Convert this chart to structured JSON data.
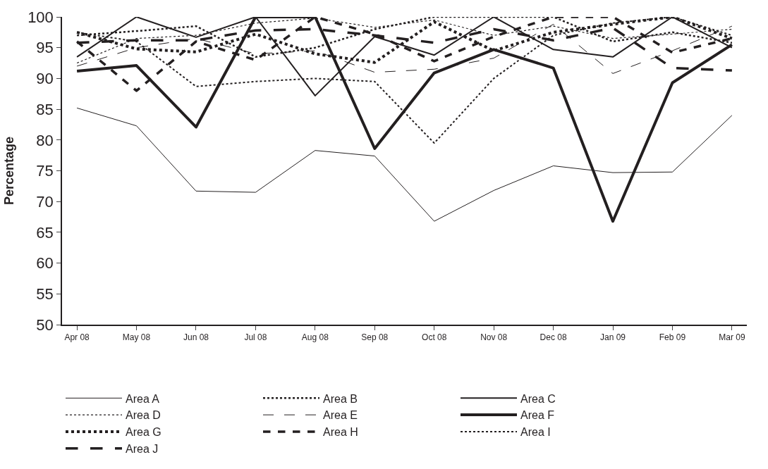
{
  "chart_data": {
    "type": "line",
    "ylabel": "Percentage",
    "categories": [
      "Apr 08",
      "May 08",
      "Jun 08",
      "Jul 08",
      "Aug 08",
      "Sep 08",
      "Oct 08",
      "Nov 08",
      "Dec 08",
      "Jan 09",
      "Feb 09",
      "Mar 09"
    ],
    "ylim": [
      50,
      100
    ],
    "yticks": [
      50,
      55,
      60,
      65,
      70,
      75,
      80,
      85,
      90,
      95,
      100
    ],
    "legend": "bottom",
    "marker": "none",
    "series": [
      {
        "name": "Area A",
        "color": "#231f20",
        "line_style": "solid",
        "values": [
          85.2,
          82.3,
          71.7,
          71.5,
          78.3,
          77.4,
          66.8,
          71.8,
          75.8,
          74.7,
          74.8,
          84.0
        ]
      },
      {
        "name": "Area B",
        "color": "#231f20",
        "line_style": "dotted",
        "values": [
          97,
          97.7,
          98.5,
          93.5,
          95,
          98,
          100,
          100,
          100,
          96,
          97.5,
          95.8
        ]
      },
      {
        "name": "Area C",
        "color": "#231f20",
        "line_style": "solid",
        "values": [
          93.5,
          100,
          96.7,
          100,
          87.2,
          96.8,
          93.8,
          100,
          94.7,
          93.5,
          100,
          95
        ]
      },
      {
        "name": "Area D",
        "color": "#231f20",
        "line_style": "dotted",
        "values": [
          92.5,
          96.5,
          97,
          99,
          99.8,
          98.3,
          99.5,
          97,
          98.5,
          96.5,
          97.2,
          98
        ]
      },
      {
        "name": "Area E",
        "color": "#231f20",
        "line_style": "dashed",
        "values": [
          92,
          95,
          96.5,
          94,
          94.5,
          91,
          91.5,
          93.3,
          98.8,
          90.8,
          94.5,
          98.5
        ]
      },
      {
        "name": "Area F",
        "color": "#231f20",
        "line_style": "solid",
        "values": [
          91.2,
          92.1,
          82.1,
          100,
          100,
          78.6,
          90.9,
          94.7,
          91.7,
          66.8,
          89.3,
          95.5
        ]
      },
      {
        "name": "Area G",
        "color": "#231f20",
        "line_style": "dotted",
        "values": [
          97.5,
          94.8,
          94.3,
          97.2,
          94,
          92.6,
          99.2,
          94.5,
          97.5,
          98.8,
          100,
          96.5
        ]
      },
      {
        "name": "Area H",
        "color": "#231f20",
        "line_style": "dashed",
        "values": [
          96,
          88,
          96,
          93,
          100,
          97.2,
          92.8,
          96.8,
          100,
          100,
          94.2,
          96.5
        ]
      },
      {
        "name": "Area I",
        "color": "#231f20",
        "line_style": "dotted",
        "values": [
          97.5,
          96,
          88.7,
          89.5,
          90,
          89.5,
          79.5,
          90,
          97,
          99,
          100,
          97
        ]
      },
      {
        "name": "Area J",
        "color": "#231f20",
        "line_style": "dashed",
        "values": [
          95.8,
          96.2,
          96.2,
          97.8,
          98,
          97,
          95.8,
          98,
          96.2,
          98.2,
          91.7,
          91.3
        ]
      }
    ]
  }
}
